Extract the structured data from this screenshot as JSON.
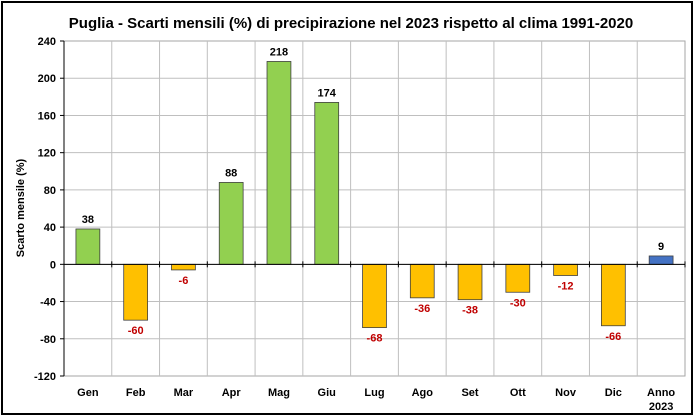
{
  "chart_data": {
    "type": "bar",
    "title": "Puglia - Scarti mensili (%) di precipirazione nel 2023 rispetto al clima 1991-2020",
    "xlabel": "",
    "ylabel": "Scarto mensile (%)",
    "categories": [
      [
        "Gen"
      ],
      [
        "Feb"
      ],
      [
        "Mar"
      ],
      [
        "Apr"
      ],
      [
        "Mag"
      ],
      [
        "Giu"
      ],
      [
        "Lug"
      ],
      [
        "Ago"
      ],
      [
        "Set"
      ],
      [
        "Ott"
      ],
      [
        "Nov"
      ],
      [
        "Dic"
      ],
      [
        "Anno",
        "2023"
      ]
    ],
    "values": [
      38,
      -60,
      -6,
      88,
      218,
      174,
      -68,
      -36,
      -38,
      -30,
      -12,
      -66,
      9
    ],
    "data_labels": [
      "38",
      "-60",
      "-6",
      "88",
      "218",
      "174",
      "-68",
      "-36",
      "-38",
      "-30",
      "-12",
      "-66",
      "9"
    ],
    "ylim": [
      -120,
      240
    ],
    "yticks": [
      -120,
      -80,
      -40,
      0,
      40,
      80,
      120,
      160,
      200,
      240
    ],
    "grid": true,
    "colors": {
      "positive": "#92d050",
      "negative": "#ffc000",
      "annual": "#4472c4",
      "negative_label": "#c00000",
      "positive_label": "#000000"
    }
  }
}
